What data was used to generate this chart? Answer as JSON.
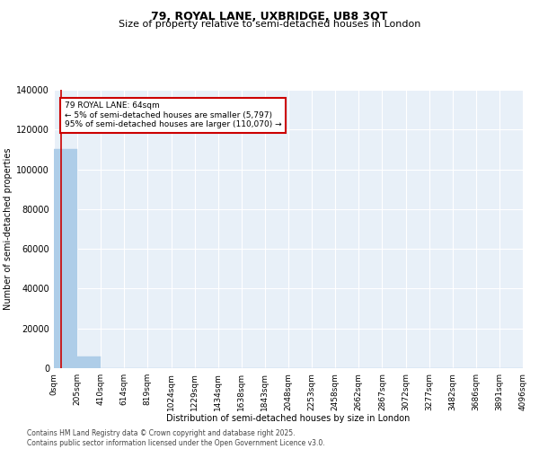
{
  "title": "79, ROYAL LANE, UXBRIDGE, UB8 3QT",
  "subtitle": "Size of property relative to semi-detached houses in London",
  "xlabel": "Distribution of semi-detached houses by size in London",
  "ylabel": "Number of semi-detached properties",
  "footnote": "Contains HM Land Registry data © Crown copyright and database right 2025.\nContains public sector information licensed under the Open Government Licence v3.0.",
  "bar_color": "#aecde8",
  "property_line_color": "#cc0000",
  "property_value": 64,
  "property_label": "79 ROYAL LANE: 64sqm",
  "annotation_line1": "← 5% of semi-detached houses are smaller (5,797)",
  "annotation_line2": "95% of semi-detached houses are larger (110,070) →",
  "annotation_box_color": "#cc0000",
  "bin_edges": [
    0,
    205,
    410,
    614,
    819,
    1024,
    1229,
    1434,
    1638,
    1843,
    2048,
    2253,
    2458,
    2662,
    2867,
    3072,
    3277,
    3482,
    3686,
    3891,
    4096
  ],
  "bin_labels": [
    "0sqm",
    "205sqm",
    "410sqm",
    "614sqm",
    "819sqm",
    "1024sqm",
    "1229sqm",
    "1434sqm",
    "1638sqm",
    "1843sqm",
    "2048sqm",
    "2253sqm",
    "2458sqm",
    "2662sqm",
    "2867sqm",
    "3072sqm",
    "3277sqm",
    "3482sqm",
    "3686sqm",
    "3891sqm",
    "4096sqm"
  ],
  "bar_heights": [
    110070,
    5797,
    0,
    0,
    0,
    0,
    0,
    0,
    0,
    0,
    0,
    0,
    0,
    0,
    0,
    0,
    0,
    0,
    0,
    0
  ],
  "ylim": [
    0,
    140000
  ],
  "yticks": [
    0,
    20000,
    40000,
    60000,
    80000,
    100000,
    120000,
    140000
  ],
  "bg_color": "#e8f0f8",
  "grid_color": "#ffffff",
  "title_fontsize": 9,
  "subtitle_fontsize": 8,
  "axis_label_fontsize": 7,
  "tick_fontsize": 7,
  "footnote_fontsize": 5.5
}
